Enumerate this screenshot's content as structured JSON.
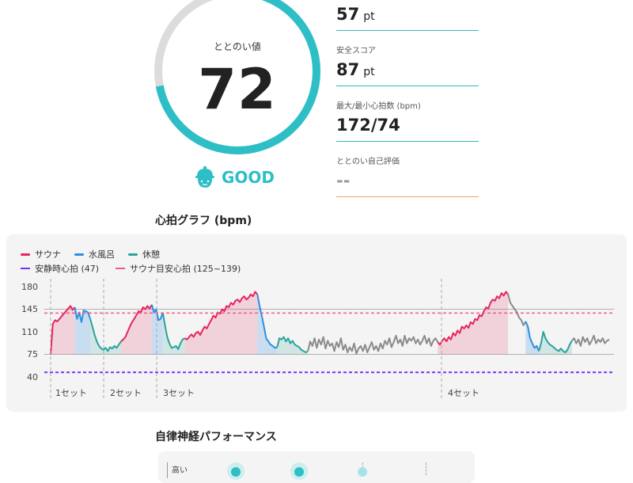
{
  "score": {
    "label": "ととのい値",
    "value": "72",
    "fraction": 0.72
  },
  "rating": {
    "text": "GOOD",
    "icon": "hat-face-icon"
  },
  "stats": [
    {
      "label": "",
      "value": "57",
      "unit": "pt"
    },
    {
      "label": "安全スコア",
      "value": "87",
      "unit": "pt"
    },
    {
      "label": "最大/最小心拍数 (bpm)",
      "value": "172/74",
      "unit": ""
    },
    {
      "label": "ととのい自己評価",
      "value": "--",
      "unit": ""
    }
  ],
  "heart_graph": {
    "title": "心拍グラフ (bpm)"
  },
  "colors": {
    "accent": "#2ebfc6",
    "sauna": "#e8245a",
    "water": "#2f8ee0",
    "rest": "#2aa39a",
    "other": "#8a8a8a",
    "resting": "#7b2ff7",
    "target": "#f05a84",
    "orange": "#f2a25f"
  },
  "legend": {
    "sauna": "サウナ",
    "water": "水風呂",
    "rest": "休憩",
    "resting_hr": "安静時心拍 (47)",
    "target_hr": "サウナ目安心拍 (125~139)"
  },
  "chart_data": {
    "type": "line",
    "title": "心拍グラフ (bpm)",
    "ylim": [
      40,
      180
    ],
    "yticks": [
      180,
      145,
      110,
      75,
      40
    ],
    "resting_hr": 47,
    "target_range": [
      125,
      139
    ],
    "sets": [
      "1セット",
      "2セット",
      "3セット",
      "4セット"
    ],
    "segments": [
      {
        "phase": "sauna",
        "values": [
          75,
          122,
          128,
          126,
          130,
          134,
          138,
          142,
          146,
          150,
          144,
          148
        ]
      },
      {
        "phase": "water",
        "values": [
          148,
          130,
          140,
          125,
          143,
          142,
          140,
          130
        ]
      },
      {
        "phase": "rest",
        "values": [
          130,
          118,
          105,
          95,
          88,
          84,
          82,
          85,
          80,
          86,
          84,
          88,
          85,
          90,
          95
        ]
      },
      {
        "phase": "sauna",
        "values": [
          95,
          98,
          102,
          110,
          118,
          125,
          130,
          136,
          142,
          140,
          148,
          145,
          150,
          146,
          152
        ]
      },
      {
        "phase": "water",
        "values": [
          152,
          140,
          145,
          128,
          130,
          140
        ]
      },
      {
        "phase": "rest",
        "values": [
          140,
          120,
          102,
          92,
          85,
          86,
          88,
          83,
          92,
          98,
          100
        ]
      },
      {
        "phase": "sauna",
        "values": [
          100,
          98,
          102,
          106,
          102,
          108,
          110,
          105,
          112,
          118,
          115,
          122,
          128,
          135,
          132,
          140,
          138,
          145,
          142,
          150,
          148,
          155,
          152,
          158,
          160,
          156,
          162,
          165,
          160,
          163,
          168,
          165,
          172,
          168
        ]
      },
      {
        "phase": "water",
        "values": [
          168,
          150,
          135,
          118,
          100,
          95,
          90,
          88,
          85,
          86
        ]
      },
      {
        "phase": "rest",
        "values": [
          86,
          100,
          98,
          102,
          95,
          100,
          92,
          96,
          90,
          88,
          86,
          82,
          80,
          78,
          80
        ]
      },
      {
        "phase": "other",
        "values": [
          80,
          95,
          88,
          100,
          85,
          98,
          90,
          102,
          84,
          96,
          88,
          92,
          80,
          94,
          86,
          100,
          82,
          90,
          78,
          86,
          80,
          92,
          76,
          84,
          88,
          80,
          90,
          78,
          86,
          94,
          82,
          88,
          80,
          92,
          84,
          96,
          90,
          100,
          86,
          94,
          104,
          92,
          98,
          88,
          104,
          92,
          100,
          96,
          102,
          92,
          98,
          90,
          96,
          104,
          92,
          100,
          88,
          96,
          100,
          94
        ]
      },
      {
        "phase": "sauna",
        "values": [
          94,
          90,
          96,
          100,
          95,
          102,
          98,
          108,
          104,
          112,
          108,
          118,
          115,
          120,
          116,
          125,
          122,
          130,
          128,
          136,
          134,
          142,
          148,
          146,
          155,
          160,
          158,
          165,
          162,
          170,
          166,
          172,
          168
        ]
      },
      {
        "phase": "other",
        "values": [
          168,
          155,
          150,
          145,
          140,
          132,
          128,
          120,
          126
        ]
      },
      {
        "phase": "water",
        "values": [
          126,
          118,
          100,
          92,
          85,
          88,
          80
        ]
      },
      {
        "phase": "rest",
        "values": [
          80,
          92,
          110,
          100,
          94,
          90,
          88,
          85,
          82,
          80,
          84,
          80,
          78,
          82,
          90,
          96
        ]
      },
      {
        "phase": "other",
        "values": [
          96,
          100,
          92,
          98,
          88,
          102,
          94,
          100,
          90,
          96,
          104,
          92,
          98,
          94,
          100,
          92,
          96,
          98
        ]
      }
    ]
  },
  "performance": {
    "title": "自律神経パフォーマンス",
    "row_label": "高い"
  }
}
